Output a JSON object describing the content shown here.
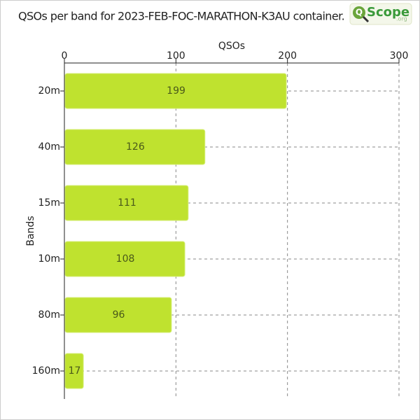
{
  "chart_data": {
    "type": "hbar",
    "title": "QSOs per band for 2023-FEB-FOC-MARATHON-K3AU container.",
    "logo": {
      "mark": "Q",
      "name": "Scope",
      "domain": ".org"
    },
    "x_label": "QSOs",
    "y_label": "Bands",
    "categories": [
      "20m",
      "40m",
      "15m",
      "10m",
      "80m",
      "160m"
    ],
    "values": [
      199,
      126,
      111,
      108,
      96,
      17
    ],
    "color": "#bfe22f",
    "xlim": [
      0,
      300
    ],
    "xticks": [
      0,
      100,
      200,
      300
    ],
    "grid": true
  }
}
